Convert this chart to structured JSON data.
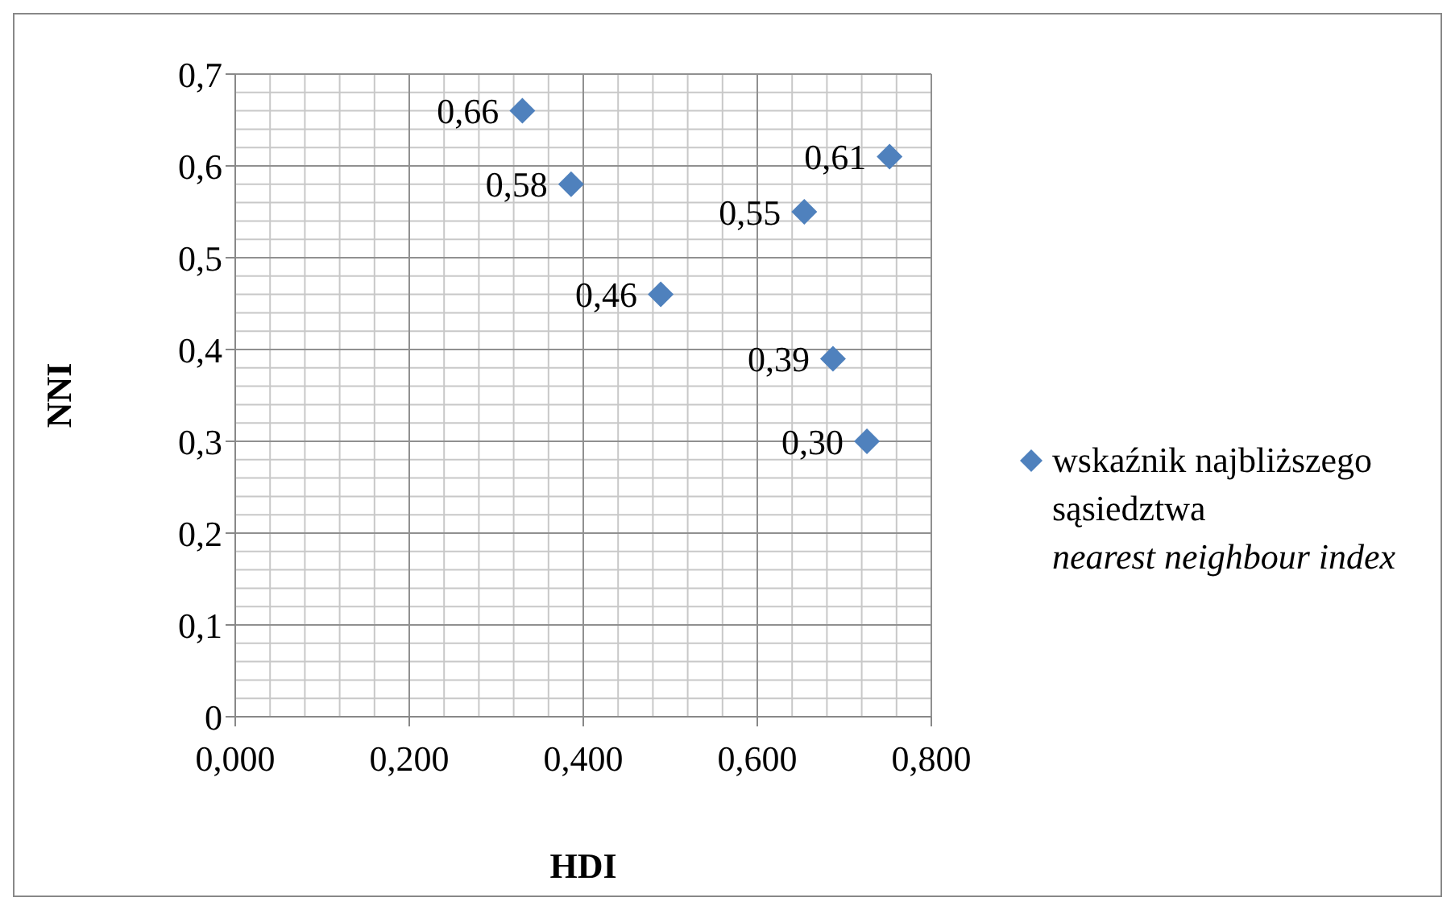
{
  "chart_data": {
    "type": "scatter",
    "xlabel": "HDI",
    "ylabel": "NNI",
    "x": [
      0.33,
      0.386,
      0.489,
      0.654,
      0.752,
      0.687,
      0.726
    ],
    "series": [
      {
        "name": "wskaźnik najbliższego sąsiedztwa\nnearest neighbour index",
        "color": "#4f81bd",
        "values": [
          0.66,
          0.58,
          0.46,
          0.55,
          0.61,
          0.39,
          0.3
        ],
        "value_labels": [
          "0,66",
          "0,58",
          "0,46",
          "0,55",
          "0,61",
          "0,39",
          "0,30"
        ]
      }
    ],
    "xlim": [
      0,
      0.8
    ],
    "xticks": [
      {
        "value": 0,
        "label": "0,000"
      },
      {
        "value": 0.2,
        "label": "0,200"
      },
      {
        "value": 0.4,
        "label": "0,400"
      },
      {
        "value": 0.6,
        "label": "0,600"
      },
      {
        "value": 0.8,
        "label": "0,800"
      }
    ],
    "ylim": [
      0,
      0.7
    ],
    "yticks": [
      0,
      {
        "value": 0.1,
        "label": "0,1"
      },
      {
        "value": 0.2,
        "label": "0,2"
      },
      {
        "value": 0.3,
        "label": "0,3"
      },
      {
        "value": 0.4,
        "label": "0,4"
      },
      {
        "value": 0.5,
        "label": "0,5"
      },
      {
        "value": 0.6,
        "label": "0,6"
      },
      {
        "value": 0.7,
        "label": "0,7"
      }
    ],
    "grid": true,
    "legend": "right",
    "marker": "diamond"
  }
}
